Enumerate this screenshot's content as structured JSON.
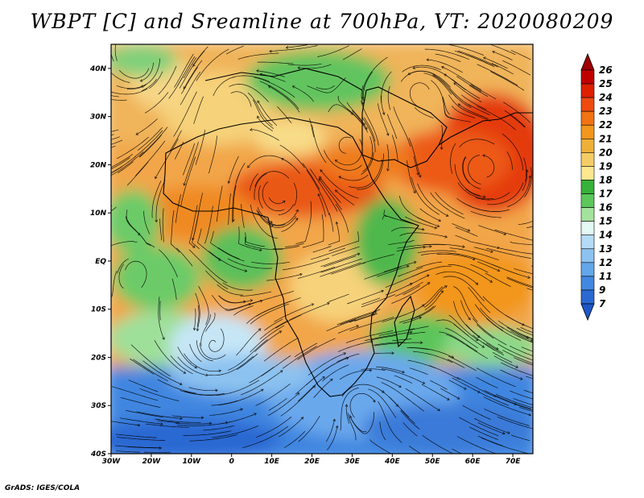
{
  "title": "WBPT [C] and Sreamline at 700hPa, VT: 2020080209",
  "credit": "GrADS: IGES/COLA",
  "axes": {
    "lat_labels": [
      "40N",
      "30N",
      "20N",
      "10N",
      "EQ",
      "10S",
      "20S",
      "30S",
      "40S"
    ],
    "lat_values": [
      40,
      30,
      20,
      10,
      0,
      -10,
      -20,
      -30,
      -40
    ],
    "lon_labels": [
      "30W",
      "20W",
      "10W",
      "0",
      "10E",
      "20E",
      "30E",
      "40E",
      "50E",
      "60E",
      "70E"
    ],
    "lon_values": [
      -30,
      -20,
      -10,
      0,
      10,
      20,
      30,
      40,
      50,
      60,
      70
    ],
    "lat_range": [
      -40,
      45
    ],
    "lon_range": [
      -30,
      75
    ]
  },
  "colorbar": {
    "labels": [
      "26",
      "25",
      "24",
      "23",
      "22",
      "21",
      "20",
      "19",
      "18",
      "17",
      "16",
      "15",
      "14",
      "13",
      "12",
      "11",
      "9",
      "7"
    ],
    "colors": [
      "#c00000",
      "#dd2000",
      "#ef4a10",
      "#f27214",
      "#f2961c",
      "#efb03a",
      "#f5cd66",
      "#fbe890",
      "#37b23a",
      "#5cc85c",
      "#a4e39e",
      "#e4f8f4",
      "#b4dcf6",
      "#8cc2f0",
      "#64a6ea",
      "#4288e0",
      "#2a68d2"
    ],
    "top_arrow": "#a00000",
    "bottom_arrow": "#1f57c8"
  },
  "map_layers": {
    "field": "wet-bulb potential temperature",
    "streamlines": "700hPa wind streamlines",
    "region": "Africa, Arabian Peninsula, western Indian Ocean, eastern Atlantic"
  }
}
